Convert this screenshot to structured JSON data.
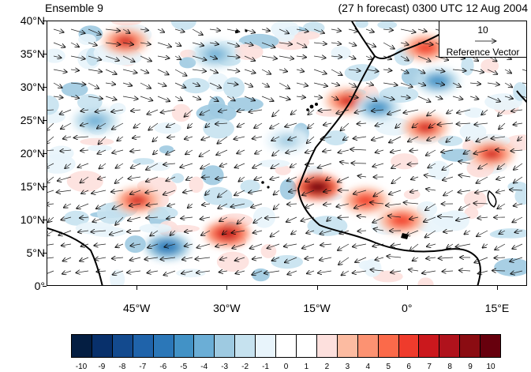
{
  "title_left": "Ensemble 9",
  "title_right": "(27 h forecast) 0300 UTC 12 Aug 2004",
  "lat_labels": [
    "40°N",
    "35°N",
    "30°N",
    "25°N",
    "20°N",
    "15°N",
    "10°N",
    "5°N",
    "0°"
  ],
  "lon_labels": [
    "45°W",
    "30°W",
    "15°W",
    "0°",
    "15°E"
  ],
  "reference_vector": {
    "value": "10",
    "label": "Reference Vector"
  },
  "colorbar": {
    "labels": [
      "-10",
      "-9",
      "-8",
      "-7",
      "-6",
      "-5",
      "-4",
      "-3",
      "-2",
      "-1",
      "0",
      "1",
      "2",
      "3",
      "4",
      "5",
      "6",
      "7",
      "8",
      "9",
      "10"
    ],
    "colors": [
      "#041e42",
      "#08306b",
      "#134a8e",
      "#1f63aa",
      "#2b77b8",
      "#4292c6",
      "#6baed6",
      "#9ecae1",
      "#c6e2ef",
      "#e8f4fb",
      "#ffffff",
      "#ffffff",
      "#fde0dd",
      "#fcbba1",
      "#fc9272",
      "#fb6a4a",
      "#ef3b2c",
      "#cb181d",
      "#b0121c",
      "#8b0c12",
      "#67000d"
    ]
  },
  "map_data": {
    "type": "wind_vector_and_shaded_field",
    "region": "Tropical North Atlantic and West Africa",
    "lon_range": [
      -60,
      20
    ],
    "lat_range": [
      0,
      40
    ],
    "positive_anomaly_centers": [
      {
        "lon": -47,
        "lat": 37,
        "value": 7
      },
      {
        "lon": -45,
        "lat": 13,
        "value": 7
      },
      {
        "lon": -30,
        "lat": 8,
        "value": 8
      },
      {
        "lon": -15,
        "lat": 15,
        "value": 10
      },
      {
        "lon": -10,
        "lat": 28,
        "value": 7
      },
      {
        "lon": 3,
        "lat": 24,
        "value": 7
      },
      {
        "lon": 14,
        "lat": 20,
        "value": 7
      },
      {
        "lon": -7,
        "lat": 13,
        "value": 6
      },
      {
        "lon": -1,
        "lat": 10,
        "value": 6
      },
      {
        "lon": 3,
        "lat": 36,
        "value": 6
      }
    ],
    "negative_anomaly_centers": [
      {
        "lon": -40,
        "lat": 6,
        "value": -6
      },
      {
        "lon": -32,
        "lat": 35,
        "value": -4
      },
      {
        "lon": 5,
        "lat": 31,
        "value": -5
      },
      {
        "lon": -5,
        "lat": 27,
        "value": -5
      },
      {
        "lon": -52,
        "lat": 25,
        "value": -4
      },
      {
        "lon": -20,
        "lat": 22,
        "value": -3
      }
    ]
  }
}
